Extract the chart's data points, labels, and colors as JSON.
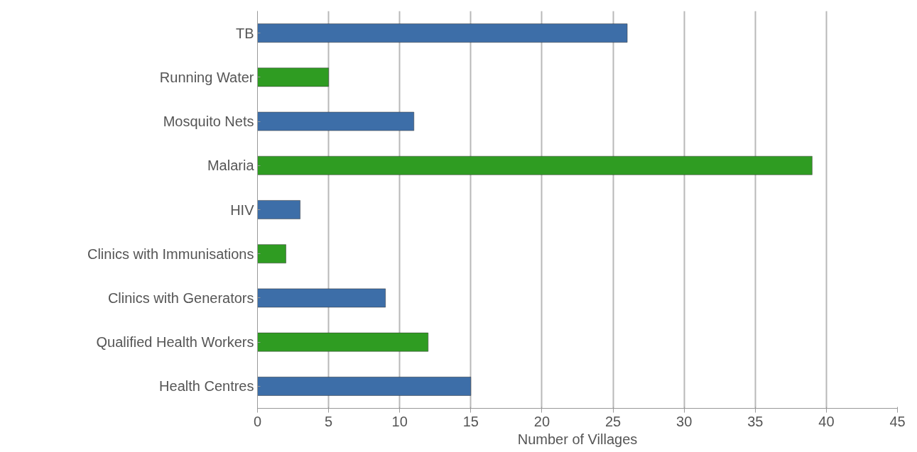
{
  "chart_data": {
    "type": "bar",
    "orientation": "horizontal",
    "xlabel": "Number of Villages",
    "categories": [
      "TB",
      "Running Water",
      "Mosquito Nets",
      "Malaria",
      "HIV",
      "Clinics with Immunisations",
      "Clinics with Generators",
      "Qualified Health Workers",
      "Health Centres"
    ],
    "values": [
      26,
      5,
      11,
      39,
      3,
      2,
      9,
      12,
      15
    ],
    "colors": [
      "#3d6ea8",
      "#2f9c22",
      "#3d6ea8",
      "#2f9c22",
      "#3d6ea8",
      "#2f9c22",
      "#3d6ea8",
      "#2f9c22",
      "#3d6ea8"
    ],
    "xlim": [
      0,
      45
    ],
    "xticks": [
      0,
      5,
      10,
      15,
      20,
      25,
      30,
      35,
      40,
      45
    ],
    "grid": "x"
  }
}
